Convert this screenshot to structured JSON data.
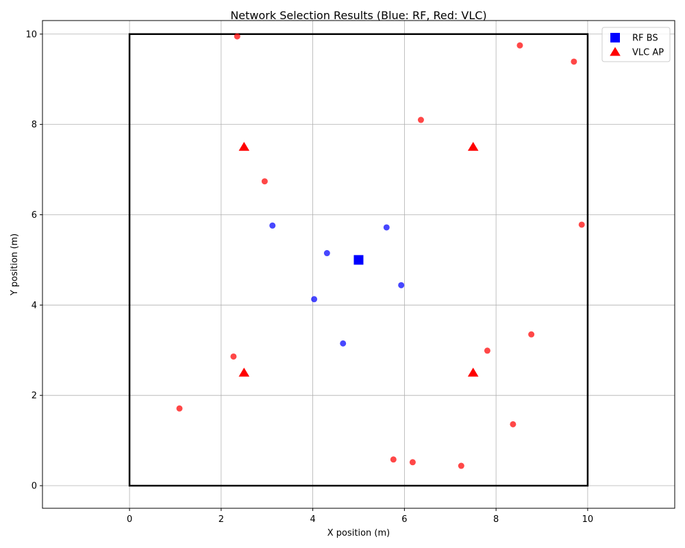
{
  "chart_data": {
    "type": "scatter",
    "title": "Network Selection Results (Blue: RF, Red: VLC)",
    "xlabel": "X position (m)",
    "ylabel": "Y position (m)",
    "xlim": [
      -1.9,
      11.9
    ],
    "ylim": [
      -0.5,
      10.3
    ],
    "xticks": [
      "0",
      "2",
      "4",
      "6",
      "8",
      "10"
    ],
    "yticks": [
      "0",
      "2",
      "4",
      "6",
      "8",
      "10"
    ],
    "grid": true,
    "room_boundary": {
      "x": [
        0,
        10
      ],
      "y": [
        0,
        10
      ]
    },
    "legend_position": "top-right",
    "colors": {
      "rf": "#0000ff",
      "vlc": "#ff0000",
      "grid": "#b0b0b0"
    },
    "rf_bs": [
      {
        "x": 5.0,
        "y": 5.0
      }
    ],
    "vlc_ap": [
      {
        "x": 2.5,
        "y": 7.5
      },
      {
        "x": 7.5,
        "y": 7.5
      },
      {
        "x": 2.5,
        "y": 2.5
      },
      {
        "x": 7.5,
        "y": 2.5
      }
    ],
    "rf_users": [
      {
        "x": 3.12,
        "y": 5.76
      },
      {
        "x": 4.31,
        "y": 5.15
      },
      {
        "x": 5.61,
        "y": 5.72
      },
      {
        "x": 5.93,
        "y": 4.44
      },
      {
        "x": 4.03,
        "y": 4.13
      },
      {
        "x": 4.66,
        "y": 3.15
      }
    ],
    "vlc_users": [
      {
        "x": 2.35,
        "y": 9.95
      },
      {
        "x": 8.52,
        "y": 9.75
      },
      {
        "x": 9.7,
        "y": 9.39
      },
      {
        "x": 6.36,
        "y": 8.1
      },
      {
        "x": 2.95,
        "y": 6.74
      },
      {
        "x": 9.87,
        "y": 5.78
      },
      {
        "x": 8.77,
        "y": 3.35
      },
      {
        "x": 7.81,
        "y": 2.99
      },
      {
        "x": 2.27,
        "y": 2.86
      },
      {
        "x": 1.09,
        "y": 1.71
      },
      {
        "x": 8.37,
        "y": 1.36
      },
      {
        "x": 5.76,
        "y": 0.58
      },
      {
        "x": 6.18,
        "y": 0.52
      },
      {
        "x": 7.24,
        "y": 0.44
      }
    ],
    "legend": [
      {
        "label": "RF BS",
        "marker": "square",
        "color": "#0000ff"
      },
      {
        "label": "VLC AP",
        "marker": "triangle",
        "color": "#ff0000"
      }
    ]
  }
}
